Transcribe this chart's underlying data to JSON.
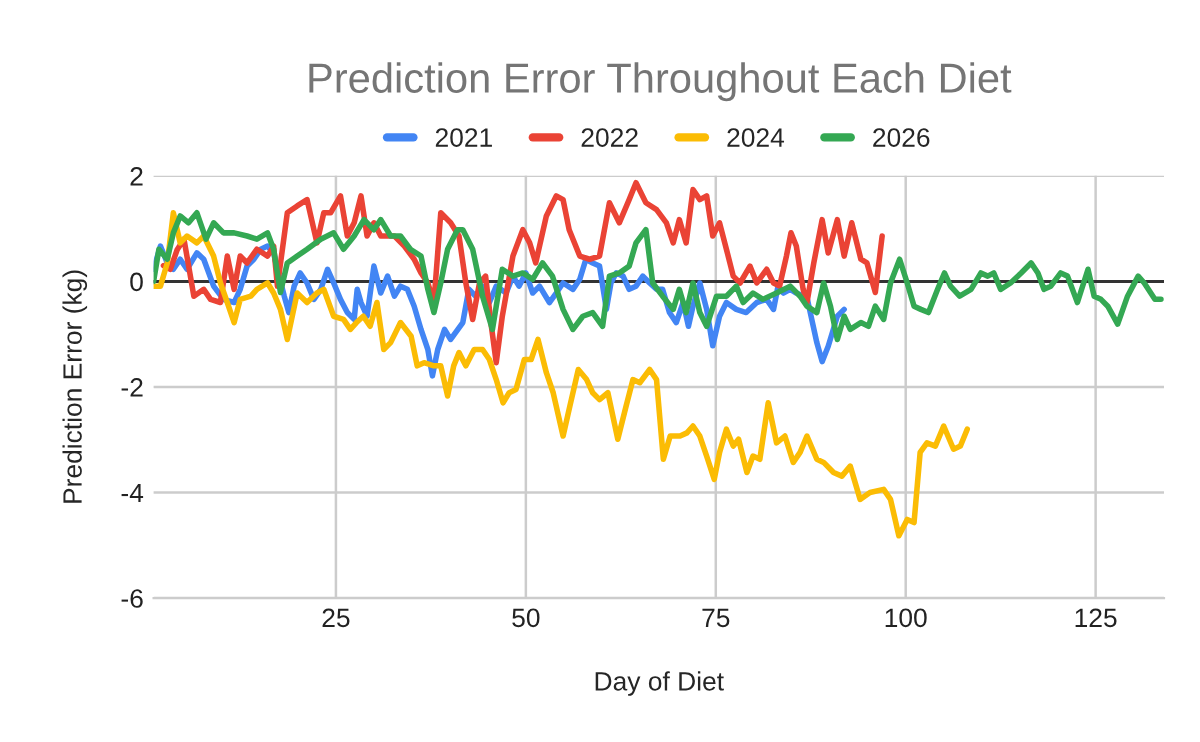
{
  "chart_data": {
    "type": "line",
    "title": "Prediction Error Throughout Each Diet",
    "xlabel": "Day of Diet",
    "ylabel": "Prediction Error (kg)",
    "xlim": [
      1,
      134
    ],
    "xticks": [
      25,
      50,
      75,
      100,
      125
    ],
    "ylim": [
      -6,
      2
    ],
    "yticks": [
      -6,
      -4,
      -2,
      0,
      2
    ],
    "grid": true,
    "legend": "top",
    "marker": "none",
    "line_style": "solid",
    "ref_lines": [
      {
        "axis": "y",
        "value": 0,
        "color": "#333333"
      }
    ],
    "series": [
      {
        "name": "2021",
        "color": "#4285f4",
        "x": [
          1,
          1.9,
          2.8,
          3.6,
          4.5,
          5.4,
          6.7,
          7.6,
          8.9,
          10.2,
          11.6,
          12.4,
          13.3,
          14.2,
          15.1,
          16,
          16.8,
          17.3,
          18.2,
          18.8,
          19.5,
          20.3,
          21.2,
          22.1,
          23,
          23.9,
          24.7,
          25.6,
          26.5,
          27.4,
          27.8,
          28.3,
          29.1,
          30,
          30.9,
          31.8,
          32.7,
          33.5,
          34.4,
          35.3,
          36.2,
          37.1,
          37.7,
          38.4,
          39.3,
          40.1,
          41.7,
          42.5,
          43.4,
          44.3,
          45.2,
          46.1,
          47.4,
          48.3,
          49.1,
          50,
          50.9,
          51.8,
          53.1,
          54,
          54.9,
          56.2,
          57.1,
          57.9,
          58.8,
          59.7,
          60.6,
          61.2,
          61.9,
          62.8,
          63.6,
          64.5,
          65.4,
          66.3,
          67.2,
          68,
          68.9,
          69.8,
          70.7,
          71.4,
          72,
          72.9,
          73.8,
          74.6,
          75.5,
          76.4,
          77.7,
          79,
          80.4,
          81.7,
          82.6,
          83.2,
          83.9,
          84.8,
          85.6,
          87,
          88.3,
          89,
          89.8,
          91,
          91.9
        ],
        "values": [
          0.23,
          0.67,
          0.35,
          0.23,
          0.42,
          0.23,
          0.54,
          0.42,
          -0.09,
          -0.34,
          -0.4,
          -0.15,
          0.29,
          0.42,
          0.61,
          0.67,
          0.54,
          0.23,
          -0.28,
          -0.59,
          -0.09,
          0.16,
          -0.03,
          -0.34,
          -0.15,
          0.23,
          -0.03,
          -0.34,
          -0.59,
          -0.72,
          -0.15,
          -0.4,
          -0.66,
          0.29,
          -0.22,
          0.1,
          -0.28,
          -0.09,
          -0.15,
          -0.47,
          -0.91,
          -1.29,
          -1.79,
          -1.29,
          -0.91,
          -1.1,
          -0.78,
          -0.15,
          -0.28,
          -0.09,
          -0.4,
          -0.09,
          -0.22,
          0.1,
          -0.09,
          0.16,
          -0.22,
          -0.09,
          -0.4,
          -0.22,
          -0.03,
          -0.15,
          0.04,
          0.42,
          0.35,
          0.29,
          -0.53,
          -0.03,
          0.16,
          0.1,
          -0.15,
          -0.09,
          0.1,
          -0.03,
          -0.15,
          -0.15,
          -0.59,
          -0.78,
          -0.4,
          -0.85,
          -0.47,
          -0.03,
          -0.53,
          -1.22,
          -0.66,
          -0.4,
          -0.53,
          -0.59,
          -0.4,
          -0.34,
          -0.53,
          -0.09,
          -0.22,
          -0.15,
          -0.22,
          -0.3,
          -1.16,
          -1.52,
          -1.23,
          -0.66,
          -0.53
        ]
      },
      {
        "name": "2022",
        "color": "#ea4335",
        "x": [
          2.3,
          3.2,
          4.1,
          5,
          6.3,
          7.6,
          8.5,
          9.8,
          10.7,
          11.6,
          12.4,
          13.3,
          14.6,
          16,
          16.8,
          17.3,
          18.6,
          19.9,
          21.2,
          22.5,
          23.4,
          24.3,
          25.6,
          26.5,
          27.4,
          28.3,
          29.1,
          30,
          30.9,
          32.7,
          34,
          35.3,
          36.2,
          37.1,
          37.9,
          38.8,
          40.1,
          41.2,
          42.1,
          43,
          43.9,
          44.7,
          45.4,
          46.1,
          46.9,
          48.3,
          49.6,
          50.5,
          51.3,
          52.7,
          54,
          54.9,
          55.7,
          57.1,
          58.4,
          59.7,
          61,
          62.3,
          63.6,
          64.5,
          65.8,
          67.2,
          68.5,
          69.4,
          70.2,
          71.1,
          72,
          72.9,
          73.8,
          74.6,
          75.5,
          76.4,
          77.3,
          78.2,
          79.5,
          80.4,
          81.7,
          82.6,
          83.4,
          84.3,
          84.9,
          85.6,
          86.5,
          87,
          87.9,
          89,
          89.8,
          91,
          91.9,
          92.9,
          94.1,
          94.9,
          96,
          96.9
        ],
        "values": [
          0.3,
          0.23,
          0.6,
          0.8,
          -0.28,
          -0.15,
          -0.34,
          -0.4,
          0.48,
          -0.15,
          0.48,
          0.35,
          0.61,
          0.48,
          0.67,
          -0.09,
          1.3,
          1.43,
          1.55,
          0.73,
          1.3,
          1.3,
          1.62,
          0.86,
          1.11,
          1.62,
          0.86,
          1.11,
          0.86,
          0.86,
          0.67,
          0.42,
          0.16,
          -0.03,
          -0.4,
          1.3,
          1.11,
          0.86,
          -0.03,
          -0.72,
          -0.03,
          0.1,
          -0.78,
          -1.54,
          -0.66,
          0.48,
          0.98,
          0.73,
          0.35,
          1.24,
          1.62,
          1.55,
          0.98,
          0.48,
          0.42,
          0.48,
          1.49,
          1.11,
          1.55,
          1.87,
          1.49,
          1.36,
          1.11,
          0.73,
          1.17,
          0.73,
          1.74,
          1.55,
          1.62,
          0.86,
          1.11,
          0.61,
          0.1,
          -0.03,
          0.29,
          -0.03,
          0.23,
          -0.03,
          -0.09,
          0.48,
          0.92,
          0.67,
          -0.15,
          -0.4,
          0.35,
          1.17,
          0.54,
          1.17,
          0.48,
          1.11,
          0.42,
          0.35,
          -0.21,
          0.86
        ]
      },
      {
        "name": "2024",
        "color": "#fbbc04",
        "x": [
          1,
          1.9,
          2.8,
          3.6,
          4.5,
          5.4,
          6.7,
          7.6,
          8.9,
          9.8,
          10.7,
          11.6,
          12.4,
          13.8,
          14.6,
          16,
          16.8,
          17.7,
          18.6,
          19.9,
          21.2,
          22.5,
          23.4,
          24.7,
          26,
          26.9,
          27.7,
          28.6,
          29.5,
          30.4,
          31.3,
          32.2,
          33.5,
          34.9,
          35.7,
          36.6,
          37.9,
          38.8,
          39.7,
          40.5,
          41.2,
          42.1,
          43.2,
          44.3,
          45.2,
          46.1,
          47,
          47.8,
          48.7,
          49.8,
          50.7,
          51.6,
          52.7,
          53.6,
          54.9,
          55.8,
          56.9,
          58,
          58.8,
          59.7,
          60.8,
          62.1,
          63.2,
          64.1,
          65,
          66.3,
          67.2,
          68.1,
          69,
          70.3,
          71.2,
          72,
          72.9,
          73.8,
          74.8,
          75.5,
          76.4,
          77.3,
          78,
          79.1,
          79.9,
          80.8,
          81.9,
          83,
          84.1,
          85.2,
          86.1,
          87,
          88.3,
          89.2,
          90.5,
          91.6,
          92.7,
          94,
          95.3,
          97.1,
          98,
          99.1,
          100.2,
          101.1,
          101.9,
          102.8,
          103.9,
          105,
          106.3,
          107.2,
          108.1
        ],
        "values": [
          -0.09,
          -0.09,
          0.35,
          1.3,
          0.73,
          0.86,
          0.73,
          0.86,
          0.48,
          -0.03,
          -0.4,
          -0.78,
          -0.34,
          -0.28,
          -0.15,
          -0.03,
          -0.22,
          -0.53,
          -1.1,
          -0.22,
          -0.4,
          -0.22,
          -0.15,
          -0.66,
          -0.72,
          -0.91,
          -0.78,
          -0.66,
          -0.85,
          -0.4,
          -1.29,
          -1.16,
          -0.78,
          -1.04,
          -1.6,
          -1.54,
          -1.6,
          -1.6,
          -2.17,
          -1.6,
          -1.35,
          -1.6,
          -1.29,
          -1.29,
          -1.48,
          -1.86,
          -2.3,
          -2.11,
          -2.05,
          -1.48,
          -1.48,
          -1.1,
          -1.73,
          -2.11,
          -2.93,
          -2.36,
          -1.67,
          -1.86,
          -2.11,
          -2.24,
          -2.11,
          -2.99,
          -2.36,
          -1.86,
          -1.92,
          -1.67,
          -1.86,
          -3.37,
          -2.93,
          -2.93,
          -2.87,
          -2.74,
          -2.93,
          -3.31,
          -3.75,
          -3.24,
          -2.8,
          -3.12,
          -2.99,
          -3.62,
          -3.31,
          -3.37,
          -2.3,
          -3.06,
          -2.93,
          -3.43,
          -3.24,
          -2.93,
          -3.37,
          -3.43,
          -3.62,
          -3.69,
          -3.5,
          -4.13,
          -4.0,
          -3.94,
          -4.13,
          -4.82,
          -4.51,
          -4.57,
          -3.24,
          -3.06,
          -3.12,
          -2.74,
          -3.18,
          -3.12,
          -2.8
        ]
      },
      {
        "name": "2026",
        "color": "#34a853",
        "x": [
          1,
          1.7,
          2.8,
          3.6,
          4.5,
          5.6,
          6.7,
          7.9,
          8.9,
          10.2,
          11.6,
          13.3,
          14.6,
          16,
          16.8,
          17.7,
          18.6,
          19.9,
          21.2,
          23,
          24.7,
          26,
          27.4,
          28.7,
          30,
          30.9,
          32.2,
          33.5,
          34.8,
          36.2,
          37.1,
          37.9,
          38.8,
          39.7,
          41,
          41.7,
          43,
          44.3,
          45.6,
          46.9,
          48.3,
          49.6,
          50.9,
          52.2,
          53.5,
          54.9,
          56.2,
          57.5,
          58.8,
          60.1,
          61,
          62.3,
          63.6,
          64.5,
          65.8,
          66.7,
          68,
          69.4,
          70.2,
          71.1,
          72,
          72.9,
          73.8,
          75.1,
          76.4,
          77.7,
          78.6,
          79.9,
          81.2,
          83,
          84.8,
          86.1,
          87,
          88.3,
          89.2,
          90.1,
          91,
          91.9,
          92.7,
          94.1,
          95.1,
          96,
          97.1,
          98,
          99.2,
          100.2,
          101.1,
          102,
          103,
          104.2,
          105.1,
          105.9,
          107.1,
          108.6,
          109.9,
          110.8,
          111.6,
          112.5,
          113.8,
          115.2,
          116.5,
          117.4,
          118.2,
          119.1,
          120.4,
          121.3,
          122.6,
          124,
          124.8,
          125.7,
          126.6,
          127.9,
          129.2,
          130.6,
          131.4,
          132.8,
          133.6
        ],
        "values": [
          0,
          0.61,
          0.42,
          0.92,
          1.24,
          1.11,
          1.3,
          0.8,
          1.11,
          0.92,
          0.92,
          0.86,
          0.8,
          0.92,
          0.61,
          -0.21,
          0.35,
          0.48,
          0.61,
          0.8,
          0.92,
          0.61,
          0.86,
          1.17,
          0.98,
          1.17,
          0.86,
          0.86,
          0.61,
          0.48,
          -0.15,
          -0.59,
          -0.03,
          0.61,
          0.98,
          0.98,
          0.61,
          -0.28,
          -0.91,
          0.23,
          0.1,
          0.16,
          0.04,
          0.35,
          0.1,
          -0.53,
          -0.91,
          -0.66,
          -0.59,
          -0.85,
          0.1,
          0.16,
          0.29,
          0.73,
          0.98,
          -0.03,
          -0.28,
          -0.53,
          -0.15,
          -0.59,
          -0.03,
          -0.59,
          -0.85,
          -0.28,
          -0.28,
          -0.09,
          -0.4,
          -0.22,
          -0.34,
          -0.22,
          -0.09,
          -0.28,
          -0.47,
          -0.59,
          -0.03,
          -0.47,
          -1.1,
          -0.66,
          -0.91,
          -0.78,
          -0.85,
          -0.47,
          -0.72,
          -0.03,
          0.42,
          -0.03,
          -0.47,
          -0.53,
          -0.59,
          -0.15,
          0.16,
          -0.09,
          -0.28,
          -0.15,
          0.16,
          0.1,
          0.16,
          -0.15,
          -0.03,
          0.16,
          0.35,
          0.16,
          -0.15,
          -0.09,
          0.16,
          0.1,
          -0.4,
          0.23,
          -0.28,
          -0.34,
          -0.47,
          -0.81,
          -0.28,
          0.1,
          -0.03,
          -0.34,
          -0.34
        ]
      }
    ]
  }
}
